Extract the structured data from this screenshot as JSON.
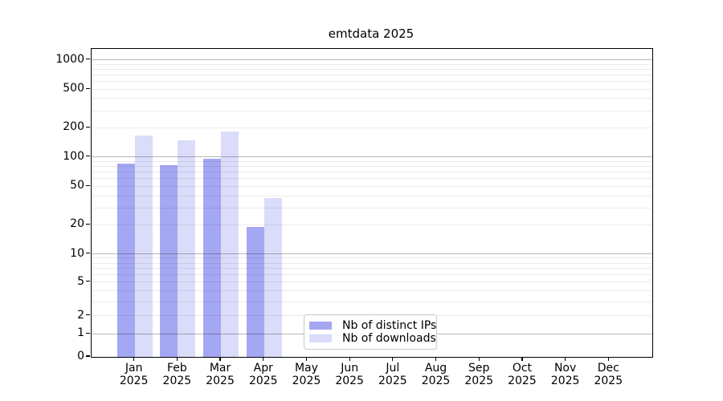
{
  "title": "emtdata 2025",
  "chart_data": {
    "type": "bar",
    "title": "emtdata 2025",
    "categories": [
      "Jan 2025",
      "Feb 2025",
      "Mar 2025",
      "Apr 2025",
      "May 2025",
      "Jun 2025",
      "Jul 2025",
      "Aug 2025",
      "Sep 2025",
      "Oct 2025",
      "Nov 2025",
      "Dec 2025"
    ],
    "series": [
      {
        "name": "Nb of distinct IPs",
        "color": "#a4a7f1",
        "values": [
          85,
          82,
          96,
          19,
          null,
          null,
          null,
          null,
          null,
          null,
          null,
          null
        ]
      },
      {
        "name": "Nb of downloads",
        "color": "#dadcf9",
        "values": [
          168,
          148,
          182,
          38,
          null,
          null,
          null,
          null,
          null,
          null,
          null,
          null
        ]
      }
    ],
    "xlabel": "",
    "ylabel": "",
    "yscale": "log-like (symlog/asinh), linear near zero",
    "yticks": [
      0,
      1,
      2,
      5,
      10,
      20,
      50,
      100,
      200,
      500,
      1000
    ],
    "ylim": [
      0,
      1300
    ],
    "grid": "horizontal; darker lines at powers of 10, faint minor lines between",
    "legend_position": "inside plot, lower center-left",
    "legend_entries": [
      "Nb of distinct IPs",
      "Nb of downloads"
    ]
  }
}
